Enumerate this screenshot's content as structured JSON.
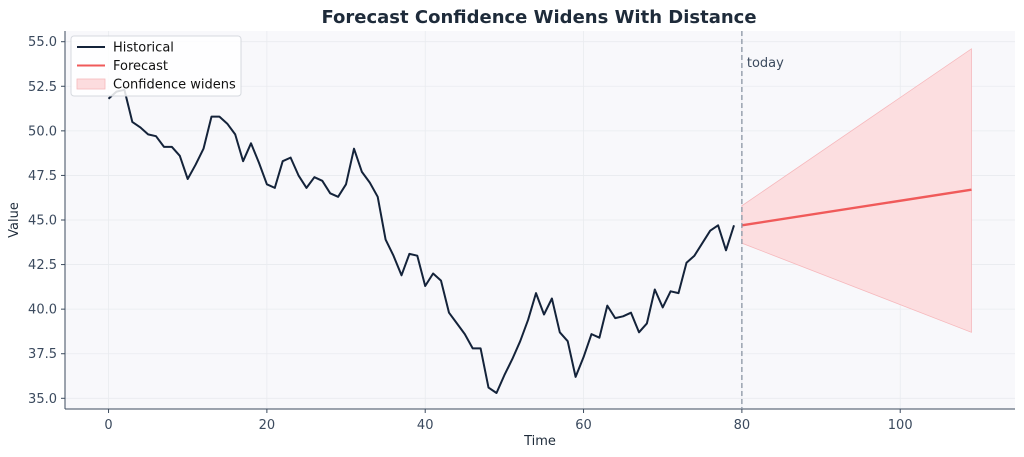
{
  "chart_data": {
    "type": "line",
    "title": "Forecast Confidence Widens With Distance",
    "xlabel": "Time",
    "ylabel": "Value",
    "xlim": [
      -5.5,
      114.5
    ],
    "ylim": [
      34.4,
      55.6
    ],
    "xticks": [
      0,
      20,
      40,
      60,
      80,
      100
    ],
    "xtick_labels": [
      "0",
      "20",
      "40",
      "60",
      "80",
      "100"
    ],
    "yticks": [
      35.0,
      37.5,
      40.0,
      42.5,
      45.0,
      47.5,
      50.0,
      52.5,
      55.0
    ],
    "ytick_labels": [
      "35.0",
      "37.5",
      "40.0",
      "42.5",
      "45.0",
      "47.5",
      "50.0",
      "52.5",
      "55.0"
    ],
    "grid": true,
    "legend_position": "top-left",
    "legend": [
      {
        "label": "Historical",
        "kind": "line",
        "color": "#14233a"
      },
      {
        "label": "Forecast",
        "kind": "line",
        "color": "#f05a5a"
      },
      {
        "label": "Confidence widens",
        "kind": "patch",
        "color": "#fcdcde"
      }
    ],
    "annotations": [
      {
        "text": "today",
        "x": 80,
        "y": 53.8
      }
    ],
    "vline": {
      "x": 80,
      "color": "#8a94a3"
    },
    "series": [
      {
        "name": "Historical",
        "color": "#14233a",
        "x": [
          0,
          1,
          2,
          3,
          4,
          5,
          6,
          7,
          8,
          9,
          10,
          11,
          12,
          13,
          14,
          15,
          16,
          17,
          18,
          19,
          20,
          21,
          22,
          23,
          24,
          25,
          26,
          27,
          28,
          29,
          30,
          31,
          32,
          33,
          34,
          35,
          36,
          37,
          38,
          39,
          40,
          41,
          42,
          43,
          44,
          45,
          46,
          47,
          48,
          49,
          50,
          51,
          52,
          53,
          54,
          55,
          56,
          57,
          58,
          59,
          60,
          61,
          62,
          63,
          64,
          65,
          66,
          67,
          68,
          69,
          70,
          71,
          72,
          73,
          74,
          75,
          76,
          77,
          78,
          79
        ],
        "y": [
          51.8,
          52.2,
          52.3,
          50.5,
          50.2,
          49.8,
          49.7,
          49.1,
          49.1,
          48.6,
          47.3,
          48.1,
          49.0,
          50.8,
          50.8,
          50.4,
          49.8,
          48.3,
          49.3,
          48.2,
          47.0,
          46.8,
          48.3,
          48.5,
          47.5,
          46.8,
          47.4,
          47.2,
          46.5,
          46.3,
          47.0,
          49.0,
          47.7,
          47.1,
          46.3,
          43.9,
          43.0,
          41.9,
          43.1,
          43.0,
          41.3,
          42.0,
          41.6,
          39.8,
          39.2,
          38.6,
          37.8,
          37.8,
          35.6,
          35.3,
          36.3,
          37.2,
          38.2,
          39.4,
          40.9,
          39.7,
          40.6,
          38.7,
          38.2,
          36.2,
          37.3,
          38.6,
          38.4,
          40.2,
          39.5,
          39.6,
          39.8,
          38.7,
          39.2,
          41.1,
          40.1,
          41.0,
          40.9,
          42.6,
          43.0,
          43.7,
          44.4,
          44.7,
          43.3,
          44.7
        ]
      },
      {
        "name": "Forecast",
        "color": "#f05a5a",
        "x": [
          80,
          109
        ],
        "y": [
          44.7,
          46.7
        ]
      }
    ],
    "band": {
      "name": "Confidence widens",
      "color": "#fcdcde",
      "x": [
        80,
        109
      ],
      "lower": [
        43.7,
        38.7
      ],
      "upper": [
        45.8,
        54.6
      ]
    }
  }
}
